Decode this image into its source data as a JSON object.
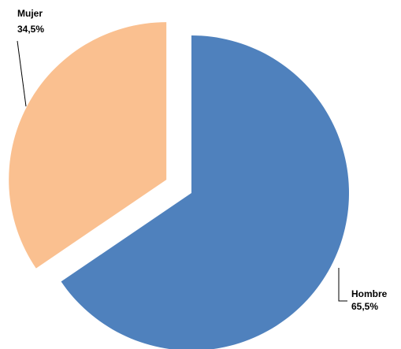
{
  "chart_data": {
    "type": "pie",
    "categories": [
      "Hombre",
      "Mujer"
    ],
    "values": [
      65.5,
      34.5
    ],
    "value_labels": [
      "65,5%",
      "34,5%"
    ],
    "colors": [
      "#4f81bd",
      "#fac090"
    ],
    "exploded": [
      false,
      true
    ]
  }
}
